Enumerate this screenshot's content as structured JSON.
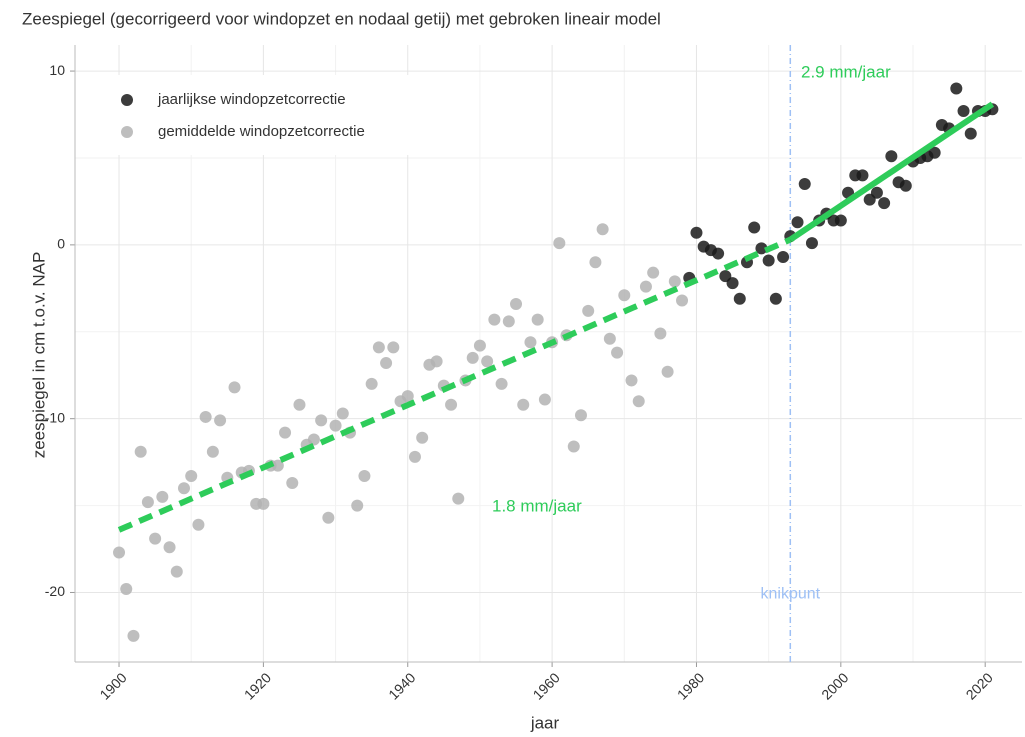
{
  "chart_data": {
    "type": "scatter",
    "title": "Zeespiegel (gecorrigeerd voor windopzet en nodaal getij) met gebroken lineair model",
    "xlabel": "jaar",
    "ylabel": "zeespiegel in cm t.o.v. NAP",
    "xlim": [
      1893.9,
      2025.1
    ],
    "ylim": [
      -24,
      11.5
    ],
    "xticks": [
      1900,
      1920,
      1940,
      1960,
      1980,
      2000,
      2020
    ],
    "yticks": [
      10,
      0,
      -10,
      -20
    ],
    "grid": true,
    "legend": "top-left",
    "series": [
      {
        "name": "jaarlijkse windopzetcorrectie",
        "color": "#1a1a1a",
        "x": [
          1979,
          1980,
          1981,
          1982,
          1983,
          1984,
          1985,
          1986,
          1987,
          1988,
          1989,
          1990,
          1991,
          1992,
          1993,
          1994,
          1995,
          1996,
          1997,
          1998,
          1999,
          2000,
          2001,
          2002,
          2003,
          2004,
          2005,
          2006,
          2007,
          2008,
          2009,
          2010,
          2011,
          2012,
          2013,
          2014,
          2015,
          2016,
          2017,
          2018,
          2019,
          2020,
          2021
        ],
        "values": [
          -1.9,
          0.7,
          -0.1,
          -0.3,
          -0.5,
          -1.8,
          -2.2,
          -3.1,
          -1.0,
          1.0,
          -0.2,
          -0.9,
          -3.1,
          -0.7,
          0.5,
          1.3,
          3.5,
          0.1,
          1.4,
          1.8,
          1.4,
          1.4,
          3.0,
          4.0,
          4.0,
          2.6,
          3.0,
          2.4,
          5.1,
          3.6,
          3.4,
          4.8,
          5.0,
          5.1,
          5.3,
          6.9,
          6.7,
          9.0,
          7.7,
          6.4,
          7.7,
          7.7,
          7.8
        ]
      },
      {
        "name": "gemiddelde windopzetcorrectie",
        "color": "#b3b3b3",
        "x": [
          1900,
          1901,
          1902,
          1903,
          1904,
          1905,
          1906,
          1907,
          1908,
          1909,
          1910,
          1911,
          1912,
          1913,
          1914,
          1915,
          1916,
          1917,
          1918,
          1919,
          1920,
          1921,
          1922,
          1923,
          1924,
          1925,
          1926,
          1927,
          1928,
          1929,
          1930,
          1931,
          1932,
          1933,
          1934,
          1935,
          1936,
          1937,
          1938,
          1939,
          1940,
          1941,
          1942,
          1943,
          1944,
          1945,
          1946,
          1947,
          1948,
          1949,
          1950,
          1951,
          1952,
          1953,
          1954,
          1955,
          1956,
          1957,
          1958,
          1959,
          1960,
          1961,
          1962,
          1963,
          1964,
          1965,
          1966,
          1967,
          1968,
          1969,
          1970,
          1971,
          1972,
          1973,
          1974,
          1975,
          1976,
          1977,
          1978
        ],
        "values": [
          -17.7,
          -19.8,
          -22.5,
          -11.9,
          -14.8,
          -16.9,
          -14.5,
          -17.4,
          -18.8,
          -14.0,
          -13.3,
          -16.1,
          -9.9,
          -11.9,
          -10.1,
          -13.4,
          -8.2,
          -13.1,
          -13.0,
          -14.9,
          -14.9,
          -12.7,
          -12.7,
          -10.8,
          -13.7,
          -9.2,
          -11.5,
          -11.2,
          -10.1,
          -15.7,
          -10.4,
          -9.7,
          -10.8,
          -15.0,
          -13.3,
          -8.0,
          -5.9,
          -6.8,
          -5.9,
          -9.0,
          -8.7,
          -12.2,
          -11.1,
          -6.9,
          -6.7,
          -8.1,
          -9.2,
          -14.6,
          -7.8,
          -6.5,
          -5.8,
          -6.7,
          -4.3,
          -8.0,
          -4.4,
          -3.4,
          -9.2,
          -5.6,
          -4.3,
          -8.9,
          -5.6,
          0.1,
          -5.2,
          -11.6,
          -9.8,
          -3.8,
          -1.0,
          0.9,
          -5.4,
          -6.2,
          -2.9,
          -7.8,
          -9.0,
          -2.4,
          -1.6,
          -5.1,
          -7.3,
          -2.1,
          -3.2
        ]
      }
    ],
    "fits": [
      {
        "label": "1.8 mm/jaar",
        "color": "#2ecc5a",
        "dashed": true,
        "x": [
          1900,
          1993
        ],
        "values": [
          -16.4,
          0.3
        ]
      },
      {
        "label": "2.9 mm/jaar",
        "color": "#2ecc5a",
        "dashed": false,
        "x": [
          1993,
          2021
        ],
        "values": [
          0.3,
          8.1
        ]
      }
    ],
    "vline": {
      "label": "knikpunt",
      "value": 1993,
      "color": "#9ec0f5"
    }
  }
}
